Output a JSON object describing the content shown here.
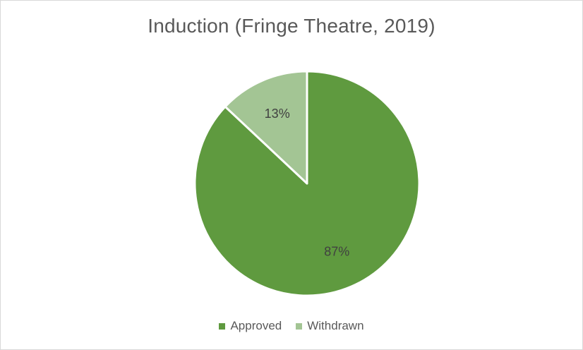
{
  "chart_data": {
    "type": "pie",
    "title": "Induction (Fringe Theatre, 2019)",
    "categories": [
      "Approved",
      "Withdrawn"
    ],
    "values": [
      87,
      13
    ],
    "data_labels": [
      "87%",
      "13%"
    ],
    "colors": [
      "#5f9a3f",
      "#a3c594"
    ],
    "legend_position": "bottom",
    "start_angle": "12 o'clock, clockwise"
  }
}
